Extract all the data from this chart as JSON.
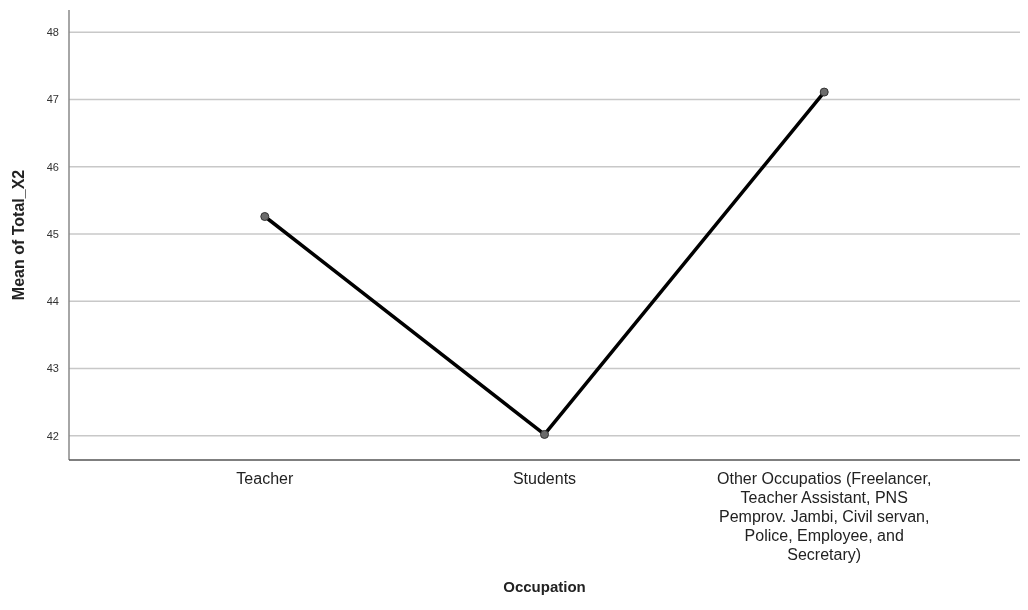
{
  "chart_data": {
    "type": "line",
    "xlabel": "Occupation",
    "ylabel": "Mean of Total_X2",
    "categories": [
      "Teacher",
      "Students",
      "Other Occupatios (Freelancer, Teacher Assistant, PNS Pemprov. Jambi, Civil servan, Police, Employee, and Secretary)"
    ],
    "series": [
      {
        "color": "#000000",
        "values": [
          45.26,
          42.02,
          47.11
        ]
      }
    ],
    "ylim": [
      41.64,
      48.33
    ],
    "yticks": [
      42,
      43,
      44,
      45,
      46,
      47,
      48
    ],
    "grid": "y",
    "marker": "circle",
    "line_style": "solid"
  }
}
